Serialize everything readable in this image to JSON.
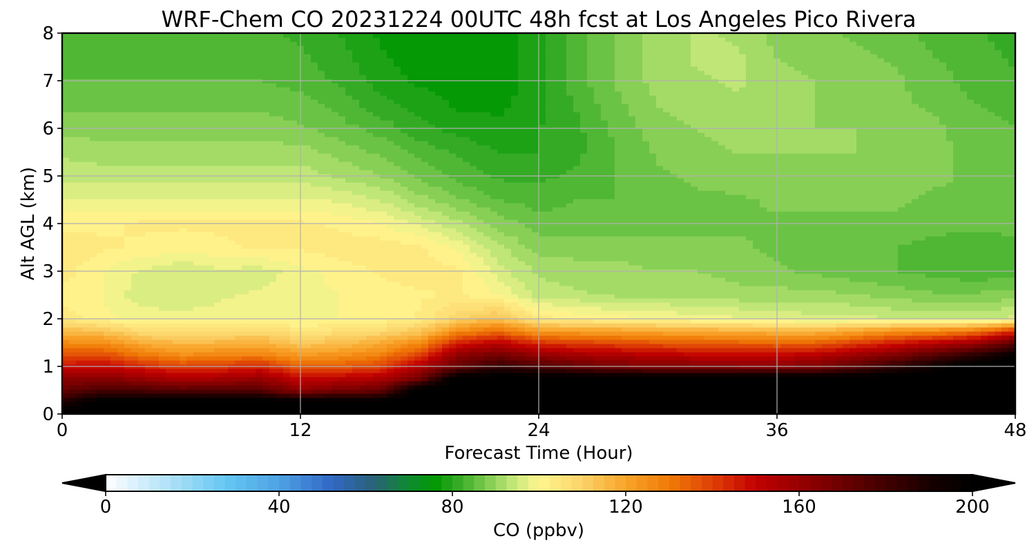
{
  "chart_data": {
    "type": "heatmap",
    "title": "WRF-Chem CO  20231224 00UTC 48h fcst at Los Angeles Pico Rivera",
    "xlabel": "Forecast Time (Hour)",
    "ylabel": "Alt AGL (km)",
    "xlim": [
      0,
      48
    ],
    "ylim": [
      0,
      8
    ],
    "xticks": [
      0,
      12,
      24,
      36,
      48
    ],
    "yticks": [
      0,
      1,
      2,
      3,
      4,
      5,
      6,
      7,
      8
    ],
    "grid": true,
    "colorbar": {
      "label": "CO  (ppbv)",
      "min": 0,
      "max": 200,
      "ticks": [
        0,
        40,
        80,
        120,
        160,
        200
      ],
      "extend": "both",
      "colors": [
        {
          "v": 0,
          "c": "#ffffff"
        },
        {
          "v": 15,
          "c": "#aee0f8"
        },
        {
          "v": 28,
          "c": "#64c6f2"
        },
        {
          "v": 40,
          "c": "#4fa2e4"
        },
        {
          "v": 52,
          "c": "#3168c5"
        },
        {
          "v": 62,
          "c": "#2a6178"
        },
        {
          "v": 70,
          "c": "#0e8a30"
        },
        {
          "v": 76,
          "c": "#039803"
        },
        {
          "v": 82,
          "c": "#3cae2a"
        },
        {
          "v": 88,
          "c": "#7fcc50"
        },
        {
          "v": 94,
          "c": "#c3e77a"
        },
        {
          "v": 100,
          "c": "#fff68f"
        },
        {
          "v": 110,
          "c": "#fbd268"
        },
        {
          "v": 120,
          "c": "#f9a42a"
        },
        {
          "v": 130,
          "c": "#f07b06"
        },
        {
          "v": 140,
          "c": "#de4006"
        },
        {
          "v": 150,
          "c": "#c20000"
        },
        {
          "v": 163,
          "c": "#8a0000"
        },
        {
          "v": 178,
          "c": "#4a0000"
        },
        {
          "v": 190,
          "c": "#180000"
        },
        {
          "v": 200,
          "c": "#000000"
        }
      ]
    },
    "x": [
      0,
      2,
      4,
      6,
      8,
      10,
      12,
      14,
      16,
      18,
      20,
      22,
      24,
      26,
      28,
      30,
      32,
      34,
      36,
      38,
      40,
      42,
      44,
      46,
      48
    ],
    "y": [
      0,
      0.25,
      0.5,
      0.75,
      1,
      1.25,
      1.5,
      1.75,
      2,
      2.5,
      3,
      3.5,
      4,
      4.5,
      5,
      5.5,
      6,
      6.5,
      7,
      7.5,
      8
    ],
    "z": [
      [
        205,
        205,
        205,
        205,
        205,
        205,
        205,
        205,
        205,
        205,
        205,
        205,
        205,
        205,
        205,
        205,
        205,
        205,
        205,
        205,
        205,
        205,
        205,
        205,
        205
      ],
      [
        188,
        205,
        205,
        205,
        205,
        205,
        205,
        205,
        205,
        205,
        205,
        205,
        205,
        205,
        205,
        205,
        205,
        205,
        205,
        205,
        205,
        205,
        205,
        205,
        205
      ],
      [
        172,
        178,
        178,
        175,
        176,
        175,
        162,
        168,
        170,
        205,
        205,
        205,
        205,
        205,
        205,
        205,
        205,
        205,
        205,
        205,
        205,
        205,
        205,
        205,
        205
      ],
      [
        162,
        164,
        160,
        155,
        157,
        160,
        150,
        152,
        155,
        168,
        205,
        205,
        205,
        205,
        205,
        205,
        205,
        205,
        205,
        205,
        205,
        205,
        205,
        205,
        205
      ],
      [
        148,
        150,
        145,
        140,
        142,
        145,
        135,
        136,
        140,
        155,
        172,
        184,
        178,
        172,
        168,
        166,
        165,
        165,
        164,
        166,
        175,
        185,
        195,
        205,
        205
      ],
      [
        138,
        138,
        130,
        125,
        127,
        128,
        122,
        124,
        128,
        140,
        162,
        168,
        160,
        156,
        154,
        152,
        150,
        150,
        150,
        152,
        158,
        165,
        175,
        185,
        198
      ],
      [
        126,
        126,
        118,
        115,
        116,
        117,
        112,
        114,
        118,
        126,
        145,
        152,
        142,
        140,
        138,
        136,
        135,
        134,
        133,
        134,
        140,
        146,
        152,
        158,
        172
      ],
      [
        115,
        113,
        107,
        106,
        107,
        108,
        105,
        106,
        108,
        112,
        126,
        132,
        122,
        121,
        120,
        119,
        118,
        117,
        116,
        116,
        120,
        124,
        126,
        130,
        142
      ],
      [
        104,
        101,
        99,
        99,
        99,
        100,
        99,
        100,
        101,
        103,
        110,
        114,
        104,
        102,
        101,
        100,
        99,
        98,
        97,
        96,
        96,
        95,
        95,
        94,
        96
      ],
      [
        101,
        100,
        96,
        95,
        97,
        98,
        99,
        100,
        101,
        102,
        103,
        100,
        94,
        93,
        92,
        92,
        92,
        91,
        91,
        91,
        90,
        89,
        88,
        88,
        89
      ],
      [
        104,
        100,
        97,
        95,
        97,
        96,
        99,
        101,
        103,
        104,
        103,
        96,
        92,
        91,
        91,
        90,
        90,
        89,
        88,
        87,
        86,
        85,
        84,
        83,
        84
      ],
      [
        104,
        103,
        102,
        101,
        102,
        103,
        103,
        104,
        104,
        103,
        99,
        93,
        89,
        89,
        89,
        88,
        88,
        88,
        87,
        86,
        86,
        85,
        84,
        83,
        84
      ],
      [
        102,
        102,
        103,
        103,
        103,
        103,
        103,
        102,
        100,
        97,
        93,
        89,
        86,
        86,
        86,
        87,
        87,
        87,
        87,
        87,
        87,
        87,
        86,
        86,
        86
      ],
      [
        98,
        98,
        98,
        98,
        98,
        98,
        98,
        97,
        95,
        91,
        88,
        85,
        84,
        85,
        85,
        86,
        87,
        87,
        88,
        88,
        88,
        88,
        87,
        87,
        86
      ],
      [
        94,
        94,
        94,
        94,
        94,
        94,
        94,
        92,
        90,
        87,
        84,
        82,
        82,
        83,
        85,
        87,
        88,
        89,
        89,
        89,
        89,
        89,
        88,
        87,
        86
      ],
      [
        92,
        91,
        91,
        91,
        91,
        91,
        91,
        89,
        87,
        84,
        82,
        80,
        80,
        82,
        85,
        88,
        89,
        90,
        90,
        90,
        90,
        89,
        88,
        87,
        86
      ],
      [
        89,
        89,
        89,
        89,
        89,
        89,
        88,
        86,
        84,
        81,
        79,
        78,
        80,
        82,
        86,
        89,
        90,
        91,
        91,
        90,
        90,
        89,
        88,
        86,
        85
      ],
      [
        87,
        87,
        87,
        87,
        87,
        87,
        86,
        84,
        81,
        79,
        77,
        77,
        79,
        83,
        87,
        90,
        91,
        92,
        91,
        90,
        89,
        88,
        87,
        85,
        84
      ],
      [
        85,
        85,
        85,
        85,
        85,
        85,
        84,
        82,
        79,
        77,
        76,
        76,
        79,
        84,
        88,
        91,
        92,
        93,
        91,
        90,
        89,
        88,
        86,
        84,
        83
      ],
      [
        84,
        84,
        84,
        84,
        84,
        84,
        83,
        81,
        78,
        76,
        75,
        76,
        79,
        84,
        88,
        91,
        93,
        93,
        90,
        89,
        88,
        87,
        85,
        84,
        82
      ],
      [
        83,
        83,
        83,
        83,
        83,
        83,
        82,
        80,
        77,
        76,
        75,
        76,
        79,
        84,
        88,
        91,
        93,
        92,
        89,
        88,
        87,
        86,
        84,
        83,
        81
      ]
    ]
  }
}
